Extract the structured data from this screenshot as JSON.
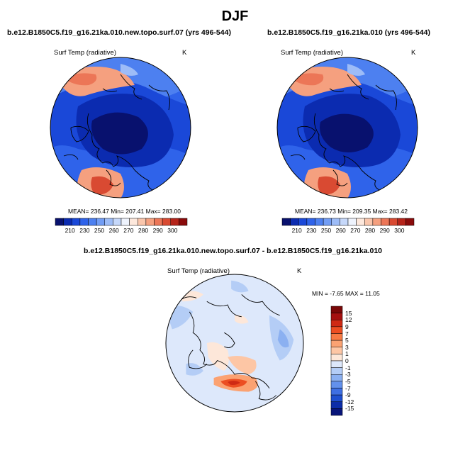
{
  "figure": {
    "title": "DJF",
    "panel_left": {
      "case": "b.e12.B1850C5.f19_g16.21ka.010.new.topo.surf.07 (yrs 496-544)",
      "variable": "Surf Temp (radiative)",
      "units": "K",
      "stats": "MEAN= 236.47  Min= 207.41  Max= 283.00"
    },
    "panel_right": {
      "case": "b.e12.B1850C5.f19_g16.21ka.010 (yrs 496-544)",
      "variable": "Surf Temp (radiative)",
      "units": "K",
      "stats": "MEAN= 236.73  Min= 209.35  Max= 283.42"
    },
    "panel_diff": {
      "case": "b.e12.B1850C5.f19_g16.21ka.010.new.topo.surf.07 - b.e12.B1850C5.f19_g16.21ka.010",
      "variable": "Surf Temp (radiative)",
      "units": "K",
      "stats": "MIN =  -7.65 MAX =  11.05"
    },
    "abs_colorbar": {
      "labels": [
        "210",
        "230",
        "250",
        "260",
        "270",
        "280",
        "290",
        "300"
      ],
      "colors": [
        "#08116e",
        "#0b2bb0",
        "#1a48d8",
        "#2f63ea",
        "#4d80f0",
        "#729df4",
        "#9dbcf7",
        "#c6d8fa",
        "#eef3fd",
        "#fde8dc",
        "#fac6ac",
        "#f5a07f",
        "#ec7657",
        "#d94a32",
        "#b5241a",
        "#8a0b0b"
      ]
    },
    "diff_colorbar": {
      "labels": [
        "15",
        "12",
        "9",
        "7",
        "5",
        "3",
        "1",
        "0",
        "-1",
        "-3",
        "-5",
        "-7",
        "-9",
        "-12",
        "-15"
      ],
      "colors": [
        "#7a0707",
        "#a50f0f",
        "#cf2a14",
        "#ec4e22",
        "#f77a44",
        "#fba272",
        "#fdc6a5",
        "#fde7d9",
        "#dde8fb",
        "#b4cdf6",
        "#8bb0f1",
        "#6391ec",
        "#3e6fe3",
        "#1e4fd0",
        "#0c2da8",
        "#08157a"
      ]
    },
    "map_colors": {
      "ocean_cold": "#1a48d8",
      "arctic_core": "#0b2bb0",
      "deep_core": "#08116e",
      "warm_atlantic": "#ec7657",
      "warm_pacific": "#f5a07f",
      "diff_base": "#c6d8fa",
      "diff_hot": "#ec4e22"
    }
  }
}
